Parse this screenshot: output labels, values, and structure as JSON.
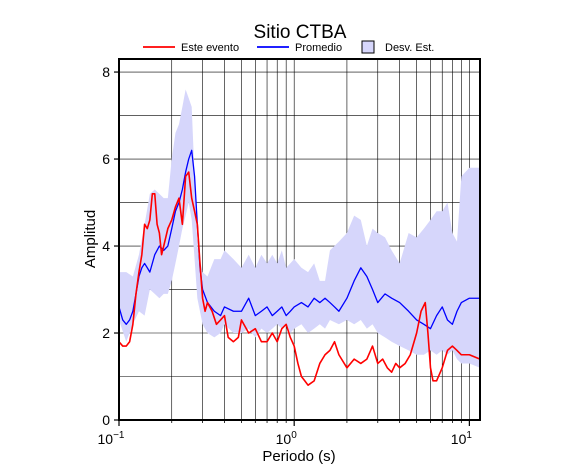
{
  "chart_data": {
    "type": "line",
    "title": "Sitio CTBA",
    "xlabel": "Periodo (s)",
    "ylabel": "Amplitud",
    "x_scale": "log",
    "xlim": [
      0.1,
      11.5
    ],
    "ylim": [
      0,
      8.3
    ],
    "x_ticks": [
      {
        "value": 0.1,
        "base": "10",
        "exp": "−1"
      },
      {
        "value": 1,
        "base": "10",
        "exp": "0"
      },
      {
        "value": 10,
        "base": "10",
        "exp": "1"
      }
    ],
    "y_ticks": [
      0,
      2,
      4,
      6,
      8
    ],
    "grid": true,
    "legend_position": "top",
    "legend": [
      {
        "label": "Este evento",
        "kind": "line",
        "color": "#ff0000"
      },
      {
        "label": "Promedio",
        "kind": "line",
        "color": "#0000ff"
      },
      {
        "label": "Desv. Est.",
        "kind": "band",
        "color": "#d6d6fb"
      }
    ],
    "band": {
      "name": "Desv. Est.",
      "color": "#d6d6fb",
      "x": [
        0.1,
        0.11,
        0.12,
        0.13,
        0.14,
        0.15,
        0.16,
        0.17,
        0.18,
        0.19,
        0.2,
        0.21,
        0.22,
        0.23,
        0.24,
        0.25,
        0.26,
        0.27,
        0.28,
        0.3,
        0.32,
        0.35,
        0.38,
        0.4,
        0.45,
        0.5,
        0.55,
        0.6,
        0.65,
        0.7,
        0.75,
        0.8,
        0.85,
        0.9,
        0.95,
        1.0,
        1.1,
        1.2,
        1.3,
        1.4,
        1.5,
        1.6,
        1.8,
        2.0,
        2.2,
        2.4,
        2.6,
        2.8,
        3.0,
        3.3,
        3.6,
        4.0,
        4.5,
        5.0,
        5.5,
        6.0,
        6.5,
        7.0,
        7.5,
        8.0,
        8.5,
        9.0,
        10.0,
        11.5
      ],
      "lower": [
        2.3,
        1.8,
        2.2,
        2.5,
        2.4,
        3.0,
        2.9,
        2.8,
        2.9,
        2.9,
        3.2,
        3.6,
        4.0,
        4.4,
        4.7,
        5.0,
        4.6,
        3.7,
        2.8,
        2.2,
        2.0,
        1.9,
        2.0,
        2.2,
        2.0,
        2.0,
        2.1,
        1.9,
        2.1,
        2.0,
        2.1,
        2.2,
        2.1,
        2.2,
        2.0,
        2.1,
        2.2,
        2.0,
        2.1,
        2.2,
        2.1,
        2.3,
        2.2,
        2.3,
        2.2,
        2.3,
        2.1,
        2.2,
        2.0,
        1.9,
        1.8,
        1.7,
        1.6,
        1.5,
        1.5,
        1.6,
        1.5,
        1.6,
        1.5,
        1.6,
        1.4,
        1.3,
        1.3,
        1.2
      ],
      "upper": [
        3.4,
        3.4,
        3.3,
        3.8,
        4.5,
        5.2,
        5.3,
        5.2,
        5.1,
        5.1,
        6.0,
        6.6,
        6.8,
        7.2,
        7.6,
        7.4,
        7.2,
        5.6,
        4.0,
        3.4,
        3.3,
        3.7,
        3.7,
        3.9,
        3.7,
        3.5,
        3.8,
        3.5,
        3.8,
        3.6,
        3.8,
        3.6,
        3.9,
        3.5,
        3.6,
        3.7,
        3.5,
        3.4,
        3.6,
        3.2,
        3.2,
        3.9,
        4.1,
        4.3,
        4.7,
        4.6,
        4.0,
        4.4,
        4.3,
        4.2,
        3.9,
        3.6,
        4.3,
        4.2,
        4.4,
        4.6,
        4.8,
        4.8,
        5.0,
        4.3,
        4.1,
        5.6,
        5.8,
        5.8
      ]
    },
    "series": [
      {
        "name": "Promedio",
        "color": "#0000ff",
        "width": 1.3,
        "x": [
          0.1,
          0.105,
          0.11,
          0.115,
          0.12,
          0.125,
          0.13,
          0.135,
          0.14,
          0.145,
          0.15,
          0.16,
          0.17,
          0.18,
          0.19,
          0.2,
          0.21,
          0.22,
          0.23,
          0.24,
          0.25,
          0.26,
          0.27,
          0.28,
          0.29,
          0.3,
          0.32,
          0.35,
          0.38,
          0.4,
          0.45,
          0.5,
          0.55,
          0.6,
          0.65,
          0.7,
          0.75,
          0.8,
          0.85,
          0.9,
          0.95,
          1.0,
          1.1,
          1.2,
          1.3,
          1.4,
          1.5,
          1.6,
          1.7,
          1.8,
          2.0,
          2.2,
          2.4,
          2.6,
          2.8,
          3.0,
          3.3,
          3.6,
          4.0,
          4.5,
          5.0,
          5.5,
          6.0,
          6.5,
          7.0,
          7.5,
          8.0,
          8.5,
          9.0,
          10.0,
          11.5
        ],
        "values": [
          2.6,
          2.3,
          2.2,
          2.3,
          2.5,
          2.9,
          3.3,
          3.5,
          3.6,
          3.5,
          3.4,
          3.8,
          4.0,
          3.9,
          4.0,
          4.4,
          4.8,
          5.0,
          5.3,
          5.7,
          6.0,
          6.2,
          5.6,
          4.5,
          3.5,
          3.0,
          2.7,
          2.5,
          2.4,
          2.6,
          2.5,
          2.5,
          2.8,
          2.4,
          2.5,
          2.6,
          2.4,
          2.5,
          2.6,
          2.4,
          2.5,
          2.6,
          2.7,
          2.6,
          2.8,
          2.7,
          2.8,
          2.7,
          2.6,
          2.5,
          2.8,
          3.2,
          3.5,
          3.3,
          3.0,
          2.7,
          2.9,
          2.8,
          2.7,
          2.5,
          2.3,
          2.2,
          2.1,
          2.4,
          2.6,
          2.3,
          2.2,
          2.5,
          2.7,
          2.8,
          2.8
        ]
      },
      {
        "name": "Este evento",
        "color": "#ff0000",
        "width": 1.6,
        "x": [
          0.1,
          0.105,
          0.11,
          0.115,
          0.12,
          0.125,
          0.13,
          0.135,
          0.14,
          0.145,
          0.15,
          0.155,
          0.16,
          0.165,
          0.17,
          0.175,
          0.18,
          0.19,
          0.2,
          0.21,
          0.22,
          0.23,
          0.24,
          0.25,
          0.26,
          0.27,
          0.28,
          0.29,
          0.3,
          0.31,
          0.32,
          0.34,
          0.36,
          0.38,
          0.4,
          0.42,
          0.45,
          0.48,
          0.5,
          0.55,
          0.6,
          0.65,
          0.7,
          0.75,
          0.8,
          0.85,
          0.9,
          0.95,
          1.0,
          1.05,
          1.1,
          1.15,
          1.2,
          1.3,
          1.4,
          1.5,
          1.6,
          1.7,
          1.8,
          2.0,
          2.2,
          2.4,
          2.6,
          2.8,
          3.0,
          3.2,
          3.4,
          3.6,
          3.8,
          4.0,
          4.3,
          4.6,
          5.0,
          5.3,
          5.6,
          5.8,
          6.0,
          6.2,
          6.5,
          7.0,
          7.5,
          8.0,
          8.5,
          9.0,
          10.0,
          11.5
        ],
        "values": [
          1.8,
          1.7,
          1.7,
          1.8,
          2.2,
          2.9,
          3.4,
          3.8,
          4.5,
          4.4,
          4.6,
          5.2,
          5.2,
          4.5,
          4.3,
          3.8,
          4.0,
          4.4,
          4.6,
          4.9,
          5.1,
          4.5,
          5.6,
          5.7,
          5.1,
          4.8,
          4.5,
          3.6,
          2.8,
          2.5,
          2.7,
          2.5,
          2.2,
          2.3,
          2.4,
          1.9,
          1.8,
          1.9,
          2.3,
          2.0,
          2.1,
          1.8,
          1.8,
          2.0,
          1.8,
          2.1,
          2.2,
          1.9,
          1.7,
          1.3,
          1.0,
          0.9,
          0.8,
          0.9,
          1.3,
          1.5,
          1.6,
          1.8,
          1.5,
          1.2,
          1.4,
          1.3,
          1.4,
          1.7,
          1.3,
          1.4,
          1.2,
          1.1,
          1.3,
          1.2,
          1.3,
          1.5,
          2.0,
          2.5,
          2.7,
          2.0,
          1.2,
          0.9,
          0.9,
          1.2,
          1.6,
          1.7,
          1.6,
          1.5,
          1.5,
          1.4
        ]
      }
    ]
  }
}
